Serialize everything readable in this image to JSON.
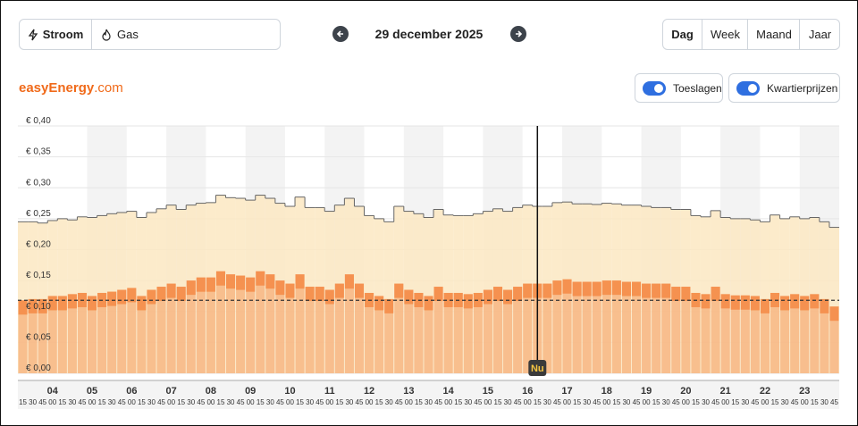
{
  "header": {
    "energy_tabs": [
      "Stroom",
      "Gas"
    ],
    "date": "29 december 2025",
    "periods": [
      "Dag",
      "Week",
      "Maand",
      "Jaar"
    ],
    "logo": {
      "brand": "easyEnergy",
      "suffix": ".com"
    },
    "toggles": [
      "Toeslagen",
      "Kwartierprijzen"
    ]
  },
  "chart_data": {
    "type": "bar",
    "x": [
      3.25,
      3.5,
      3.75,
      4,
      4.25,
      4.5,
      4.75,
      5,
      5.25,
      5.5,
      5.75,
      6,
      6.25,
      6.5,
      6.75,
      7,
      7.25,
      7.5,
      7.75,
      8,
      8.25,
      8.5,
      8.75,
      9,
      9.25,
      9.5,
      9.75,
      10,
      10.25,
      10.5,
      10.75,
      11,
      11.25,
      11.5,
      11.75,
      12,
      12.25,
      12.5,
      12.75,
      13,
      13.25,
      13.5,
      13.75,
      14,
      14.25,
      14.5,
      14.75,
      15,
      15.25,
      15.5,
      15.75,
      16,
      16.25,
      16.5,
      16.75,
      17,
      17.25,
      17.5,
      17.75,
      18,
      18.25,
      18.5,
      18.75,
      19,
      19.25,
      19.5,
      19.75,
      20,
      20.25,
      20.5,
      20.75,
      21,
      21.25,
      21.5,
      21.75,
      22,
      22.25,
      22.5,
      22.75,
      23,
      23.25,
      23.5,
      23.75
    ],
    "x_minor_labels": [
      "15",
      "30",
      "45",
      "00",
      "15",
      "30",
      "45",
      "00",
      "15",
      "30",
      "45",
      "00",
      "15",
      "30",
      "45",
      "00",
      "15",
      "30",
      "45",
      "00",
      "15",
      "30",
      "45",
      "00",
      "15",
      "30",
      "45",
      "00",
      "15",
      "30",
      "45",
      "00",
      "15",
      "30",
      "45",
      "00",
      "15",
      "30",
      "45",
      "00",
      "15",
      "30",
      "45",
      "00",
      "15",
      "30",
      "45",
      "00",
      "15",
      "30",
      "45",
      "00",
      "15",
      "30",
      "45",
      "00",
      "15",
      "30",
      "45",
      "00",
      "15",
      "30",
      "45",
      "00",
      "15",
      "30",
      "45",
      "00",
      "15",
      "30",
      "45",
      "00",
      "15",
      "30",
      "45",
      "00",
      "15",
      "30",
      "45",
      "00",
      "15",
      "30",
      "45"
    ],
    "xlim": [
      3.125,
      23.875
    ],
    "xticks": [
      {
        "value": 4,
        "label": "04"
      },
      {
        "value": 5,
        "label": "05"
      },
      {
        "value": 6,
        "label": "06"
      },
      {
        "value": 7,
        "label": "07"
      },
      {
        "value": 8,
        "label": "08"
      },
      {
        "value": 9,
        "label": "09"
      },
      {
        "value": 10,
        "label": "10"
      },
      {
        "value": 11,
        "label": "11"
      },
      {
        "value": 12,
        "label": "12"
      },
      {
        "value": 13,
        "label": "13"
      },
      {
        "value": 14,
        "label": "14"
      },
      {
        "value": 15,
        "label": "15"
      },
      {
        "value": 16,
        "label": "16"
      },
      {
        "value": 17,
        "label": "17"
      },
      {
        "value": 18,
        "label": "18"
      },
      {
        "value": 19,
        "label": "19"
      },
      {
        "value": 20,
        "label": "20"
      },
      {
        "value": 21,
        "label": "21"
      },
      {
        "value": 22,
        "label": "22"
      },
      {
        "value": 23,
        "label": "23"
      }
    ],
    "ylim": [
      0,
      0.4
    ],
    "yticks": [
      {
        "value": 0,
        "label": "€ 0,00"
      },
      {
        "value": 0.05,
        "label": "€ 0,05"
      },
      {
        "value": 0.1,
        "label": "€ 0,10"
      },
      {
        "value": 0.15,
        "label": "€ 0,15"
      },
      {
        "value": 0.2,
        "label": "€ 0,20"
      },
      {
        "value": 0.25,
        "label": "€ 0,25"
      },
      {
        "value": 0.3,
        "label": "€ 0,30"
      },
      {
        "value": 0.35,
        "label": "€ 0,35"
      },
      {
        "value": 0.4,
        "label": "€ 0,40"
      }
    ],
    "grid": true,
    "series": [
      {
        "color": "#fbe8c2",
        "values": [
          0.245,
          0.245,
          0.243,
          0.247,
          0.25,
          0.248,
          0.253,
          0.252,
          0.255,
          0.258,
          0.26,
          0.262,
          0.252,
          0.26,
          0.266,
          0.272,
          0.265,
          0.272,
          0.275,
          0.276,
          0.288,
          0.284,
          0.283,
          0.28,
          0.288,
          0.283,
          0.275,
          0.27,
          0.285,
          0.268,
          0.268,
          0.262,
          0.272,
          0.283,
          0.27,
          0.255,
          0.25,
          0.245,
          0.27,
          0.262,
          0.258,
          0.252,
          0.265,
          0.256,
          0.255,
          0.255,
          0.258,
          0.262,
          0.266,
          0.262,
          0.268,
          0.272,
          0.27,
          0.27,
          0.276,
          0.277,
          0.274,
          0.274,
          0.273,
          0.275,
          0.274,
          0.272,
          0.272,
          0.27,
          0.268,
          0.268,
          0.265,
          0.265,
          0.255,
          0.253,
          0.263,
          0.252,
          0.25,
          0.25,
          0.248,
          0.245,
          0.256,
          0.25,
          0.253,
          0.25,
          0.252,
          0.245,
          0.236
        ]
      },
      {
        "color": "#f58a45",
        "values": [
          0.118,
          0.12,
          0.12,
          0.125,
          0.125,
          0.128,
          0.13,
          0.125,
          0.13,
          0.132,
          0.135,
          0.138,
          0.125,
          0.135,
          0.14,
          0.145,
          0.14,
          0.15,
          0.155,
          0.155,
          0.165,
          0.16,
          0.158,
          0.155,
          0.165,
          0.16,
          0.15,
          0.145,
          0.16,
          0.14,
          0.14,
          0.135,
          0.145,
          0.16,
          0.145,
          0.13,
          0.125,
          0.12,
          0.145,
          0.135,
          0.13,
          0.125,
          0.14,
          0.13,
          0.13,
          0.128,
          0.13,
          0.135,
          0.14,
          0.135,
          0.14,
          0.145,
          0.145,
          0.145,
          0.15,
          0.152,
          0.148,
          0.148,
          0.148,
          0.15,
          0.15,
          0.148,
          0.148,
          0.145,
          0.145,
          0.145,
          0.14,
          0.14,
          0.13,
          0.128,
          0.14,
          0.128,
          0.126,
          0.126,
          0.125,
          0.12,
          0.13,
          0.125,
          0.128,
          0.125,
          0.128,
          0.12,
          0.108
        ]
      }
    ],
    "reference_line": 0.118,
    "now": {
      "label": "Nu",
      "x": 16.25
    }
  }
}
